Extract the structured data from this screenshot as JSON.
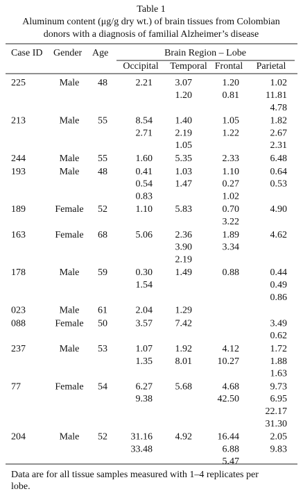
{
  "header": {
    "title": "Table 1",
    "caption": [
      "Aluminum content (μg/g dry wt.) of brain tissues from Colombian",
      "donors with a diagnosis of familial Alzheimer’s disease"
    ]
  },
  "table": {
    "columns": [
      "Case ID",
      "Gender",
      "Age"
    ],
    "group_header": "Brain Region – Lobe",
    "lobes": [
      "Occipital",
      "Temporal",
      "Frontal",
      "Parietal"
    ],
    "rows": [
      {
        "case_id": "225",
        "gender": "Male",
        "age": "48",
        "values": [
          [
            "2.21"
          ],
          [
            "3.07",
            "1.20"
          ],
          [
            "1.20",
            "0.81"
          ],
          [
            "1.02",
            "11.81",
            "4.78"
          ]
        ]
      },
      {
        "case_id": "213",
        "gender": "Male",
        "age": "55",
        "values": [
          [
            "8.54",
            "2.71"
          ],
          [
            "1.40",
            "2.19",
            "1.05"
          ],
          [
            "1.05",
            "1.22"
          ],
          [
            "1.82",
            "2.67",
            "2.31"
          ]
        ]
      },
      {
        "case_id": "244",
        "gender": "Male",
        "age": "55",
        "values": [
          [
            "1.60"
          ],
          [
            "5.35"
          ],
          [
            "2.33"
          ],
          [
            "6.48"
          ]
        ]
      },
      {
        "case_id": "193",
        "gender": "Male",
        "age": "48",
        "values": [
          [
            "0.41",
            "0.54",
            "0.83"
          ],
          [
            "1.03",
            "1.47"
          ],
          [
            "1.10",
            "0.27",
            "1.02"
          ],
          [
            "0.64",
            "0.53"
          ]
        ]
      },
      {
        "case_id": "189",
        "gender": "Female",
        "age": "52",
        "values": [
          [
            "1.10"
          ],
          [
            "5.83"
          ],
          [
            "0.70",
            "3.22"
          ],
          [
            "4.90"
          ]
        ]
      },
      {
        "case_id": "163",
        "gender": "Female",
        "age": "68",
        "values": [
          [
            "5.06"
          ],
          [
            "2.36",
            "3.90",
            "2.19"
          ],
          [
            "1.89",
            "3.34"
          ],
          [
            "4.62"
          ]
        ]
      },
      {
        "case_id": "178",
        "gender": "Male",
        "age": "59",
        "values": [
          [
            "0.30",
            "1.54"
          ],
          [
            "1.49"
          ],
          [
            "0.88"
          ],
          [
            "0.44",
            "0.49",
            "0.86"
          ]
        ]
      },
      {
        "case_id": "023",
        "gender": "Male",
        "age": "61",
        "values": [
          [
            "2.04"
          ],
          [
            "1.29"
          ],
          [],
          []
        ]
      },
      {
        "case_id": "088",
        "gender": "Female",
        "age": "50",
        "values": [
          [
            "3.57"
          ],
          [
            "7.42"
          ],
          [],
          [
            "3.49",
            "0.62"
          ]
        ]
      },
      {
        "case_id": "237",
        "gender": "Male",
        "age": "53",
        "values": [
          [
            "1.07",
            "1.35"
          ],
          [
            "1.92",
            "8.01"
          ],
          [
            "4.12",
            "10.27"
          ],
          [
            "1.72",
            "1.88",
            "1.63"
          ]
        ]
      },
      {
        "case_id": "77",
        "gender": "Female",
        "age": "54",
        "values": [
          [
            "6.27",
            "9.38"
          ],
          [
            "5.68"
          ],
          [
            "4.68",
            "42.50"
          ],
          [
            "9.73",
            "6.95",
            "22.17",
            "31.30"
          ]
        ]
      },
      {
        "case_id": "204",
        "gender": "Male",
        "age": "52",
        "values": [
          [
            "31.16",
            "33.48"
          ],
          [
            "4.92"
          ],
          [
            "16.44",
            "6.88",
            "5.47"
          ],
          [
            "2.05",
            "9.83"
          ]
        ]
      }
    ]
  },
  "footer": {
    "lines": [
      "Data are for all tissue samples measured with 1–4 replicates per",
      "lobe."
    ]
  }
}
